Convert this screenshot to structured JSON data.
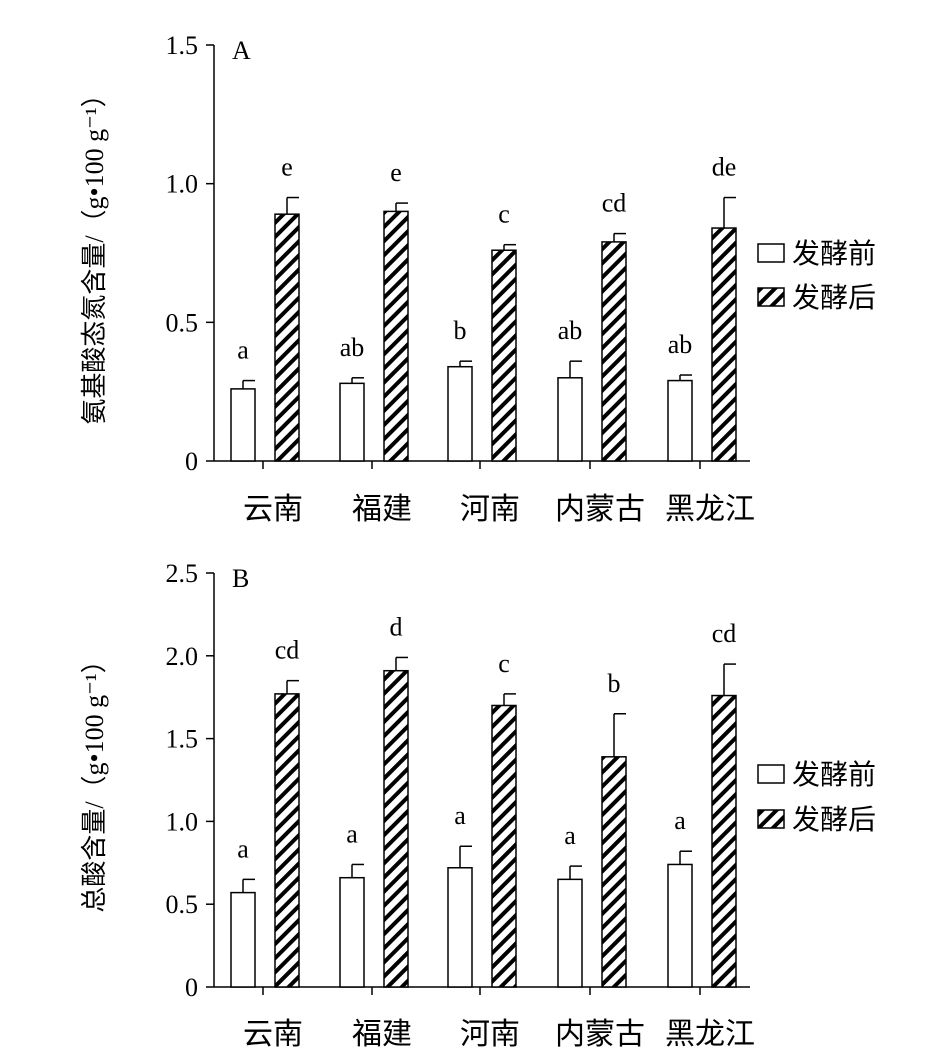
{
  "chart_data": [
    {
      "type": "bar",
      "panel_label": "A",
      "ylabel": "氨基酸态氮含量/（g•100 g⁻¹）",
      "ylim": [
        0,
        1.5
      ],
      "yticks": [
        0,
        0.5,
        1.0,
        1.5
      ],
      "ytick_labels": [
        "0",
        "0.5",
        "1.0",
        "1.5"
      ],
      "categories": [
        "云南",
        "福建",
        "河南",
        "内蒙古",
        "黑龙江"
      ],
      "series": [
        {
          "name": "发酵前",
          "pattern": "open",
          "values": [
            0.26,
            0.28,
            0.34,
            0.3,
            0.29
          ],
          "errors": [
            0.03,
            0.02,
            0.02,
            0.06,
            0.02
          ],
          "letters": [
            "a",
            "ab",
            "b",
            "ab",
            "ab"
          ]
        },
        {
          "name": "发酵后",
          "pattern": "hatched",
          "values": [
            0.89,
            0.9,
            0.76,
            0.79,
            0.84
          ],
          "errors": [
            0.06,
            0.03,
            0.02,
            0.03,
            0.11
          ],
          "letters": [
            "e",
            "e",
            "c",
            "cd",
            "de"
          ]
        }
      ],
      "legend_position": "right"
    },
    {
      "type": "bar",
      "panel_label": "B",
      "ylabel": "总酸含量/（g•100 g⁻¹）",
      "ylim": [
        0,
        2.5
      ],
      "yticks": [
        0,
        0.5,
        1.0,
        1.5,
        2.0,
        2.5
      ],
      "ytick_labels": [
        "0",
        "0.5",
        "1.0",
        "1.5",
        "2.0",
        "2.5"
      ],
      "categories": [
        "云南",
        "福建",
        "河南",
        "内蒙古",
        "黑龙江"
      ],
      "series": [
        {
          "name": "发酵前",
          "pattern": "open",
          "values": [
            0.57,
            0.66,
            0.72,
            0.65,
            0.74
          ],
          "errors": [
            0.08,
            0.08,
            0.13,
            0.08,
            0.08
          ],
          "letters": [
            "a",
            "a",
            "a",
            "a",
            "a"
          ]
        },
        {
          "name": "发酵后",
          "pattern": "hatched",
          "values": [
            1.77,
            1.91,
            1.7,
            1.39,
            1.76
          ],
          "errors": [
            0.08,
            0.08,
            0.07,
            0.26,
            0.19
          ],
          "letters": [
            "cd",
            "d",
            "c",
            "b",
            "cd"
          ]
        }
      ],
      "legend_position": "right"
    }
  ]
}
